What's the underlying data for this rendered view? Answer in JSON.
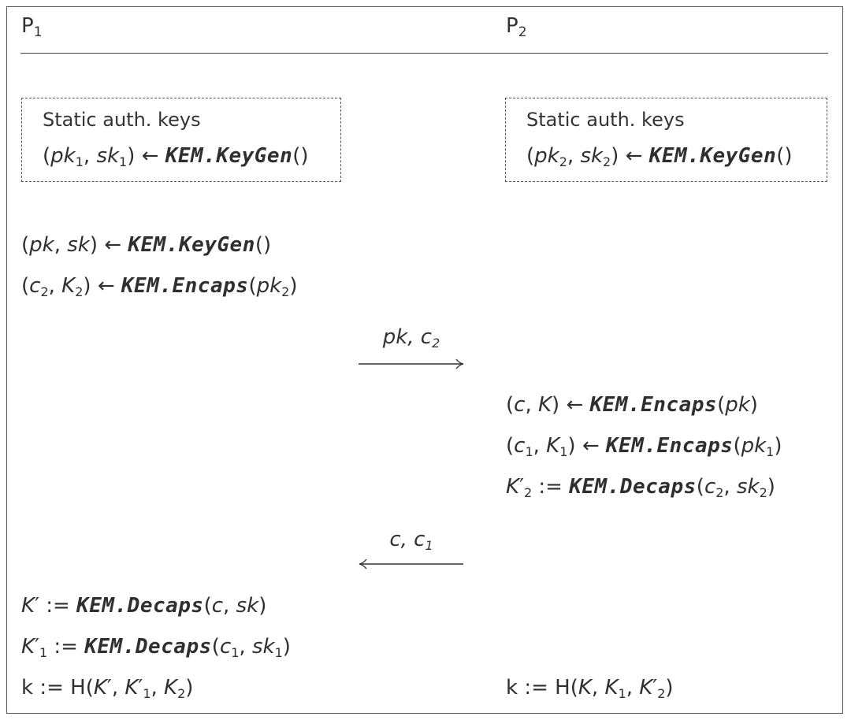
{
  "header": {
    "left_party": "P",
    "left_sub": "1",
    "right_party": "P",
    "right_sub": "2"
  },
  "static_box_left": {
    "title": "Static auth. keys",
    "pk": "pk",
    "sk": "sk",
    "idx": "1",
    "call": "KEM.KeyGen"
  },
  "static_box_right": {
    "title": "Static auth. keys",
    "pk": "pk",
    "sk": "sk",
    "idx": "2",
    "call": "KEM.KeyGen"
  },
  "p1_steps": {
    "keygen_call": "KEM.KeyGen",
    "encaps_call": "KEM.Encaps",
    "decaps_call_1": "KEM.Decaps",
    "decaps_call_2": "KEM.Decaps"
  },
  "p2_steps": {
    "encaps_call_1": "KEM.Encaps",
    "encaps_call_2": "KEM.Encaps",
    "decaps_call": "KEM.Decaps"
  },
  "messages": {
    "to_p2": "pk, c",
    "to_p2_sub": "2",
    "to_p1": "c, c",
    "to_p1_sub": "1"
  },
  "final": {
    "left_k": "k",
    "right_k": "k",
    "hash": "H"
  }
}
